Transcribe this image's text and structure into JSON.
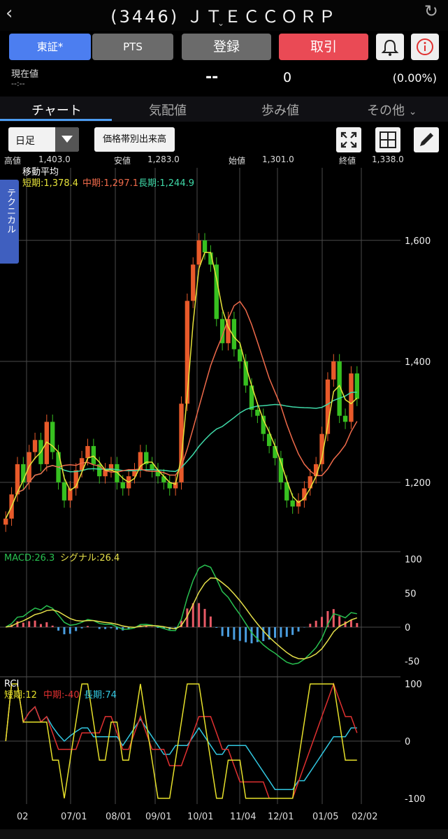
{
  "header": {
    "title": "(3446) ＪＴＥＣＣＯＲＰ",
    "back_icon": "chevron-left-icon",
    "refresh_icon": "refresh-icon"
  },
  "buttons": {
    "market": "東証*",
    "pts": "PTS",
    "register": "登録",
    "trade": "取引"
  },
  "price": {
    "label": "現在値",
    "time": "--:--",
    "value": "--",
    "change": "0",
    "change_pct": "(0.00%)"
  },
  "tabs": [
    {
      "label": "チャート"
    },
    {
      "label": "気配値"
    },
    {
      "label": "歩み値"
    },
    {
      "label": "その他"
    }
  ],
  "toolbar": {
    "period": "日足",
    "volume_button": "価格帯別出来高"
  },
  "ohlc": {
    "high_label": "高値",
    "high": "1,403.0",
    "low_label": "安値",
    "low": "1,283.0",
    "open_label": "始値",
    "open": "1,301.0",
    "close_label": "終値",
    "close": "1,338.0"
  },
  "side_tab": "テクニカル",
  "ma_panel": {
    "title": "移動平均",
    "short": "短期:1,378.4",
    "mid": "中期:1,297.1",
    "long": "長期:1,244.9"
  },
  "macd_panel": {
    "macd": "MACD:26.3",
    "signal": "シグナル:26.4"
  },
  "rci_panel": {
    "title": "RCI",
    "short": "短期:12",
    "mid": "中期:-40",
    "long": "長期:74"
  },
  "x_labels": [
    "02",
    "07/01",
    "08/01",
    "09/01",
    "10/01",
    "11/04",
    "12/01",
    "01/05",
    "02/02"
  ],
  "colors": {
    "up": "#e85a2a",
    "down": "#37c020",
    "short_ma": "#e7e33a",
    "mid_ma": "#ef6a4a",
    "long_ma": "#3fd9a8",
    "macd": "#28c050",
    "signal": "#e6e04a",
    "rci_short": "#e6e02a",
    "rci_mid": "#e03030",
    "rci_long": "#32c7e0"
  },
  "chart_data": [
    {
      "type": "candlestick",
      "title": "移動平均",
      "y_ticks": [
        1200,
        1400,
        1600
      ],
      "ylim": [
        1090,
        1720
      ],
      "x": [
        "02",
        "07/01",
        "08/01",
        "09/01",
        "10/01",
        "11/04",
        "12/01",
        "01/05",
        "02/02"
      ],
      "close_series": [
        1140,
        1180,
        1230,
        1200,
        1250,
        1270,
        1230,
        1300,
        1250,
        1200,
        1170,
        1190,
        1220,
        1240,
        1260,
        1230,
        1210,
        1220,
        1230,
        1200,
        1190,
        1210,
        1220,
        1250,
        1230,
        1220,
        1210,
        1200,
        1190,
        1200,
        1330,
        1500,
        1560,
        1600,
        1580,
        1560,
        1470,
        1430,
        1470,
        1420,
        1400,
        1360,
        1320,
        1310,
        1280,
        1260,
        1240,
        1200,
        1170,
        1160,
        1170,
        1190,
        1210,
        1230,
        1280,
        1370,
        1400,
        1310,
        1300,
        1380,
        1338
      ],
      "series": [
        {
          "name": "短期",
          "last": 1378.4
        },
        {
          "name": "中期",
          "last": 1297.1
        },
        {
          "name": "長期",
          "last": 1244.9
        }
      ]
    },
    {
      "type": "line",
      "title": "MACD",
      "y_ticks": [
        100,
        50,
        0,
        -50
      ],
      "ylim": [
        -70,
        110
      ],
      "series": [
        {
          "name": "MACD",
          "last": 26.3
        },
        {
          "name": "シグナル",
          "last": 26.4
        }
      ]
    },
    {
      "type": "line",
      "title": "RCI",
      "y_ticks": [
        100,
        0,
        -100
      ],
      "ylim": [
        -110,
        110
      ],
      "series": [
        {
          "name": "短期",
          "last": 12
        },
        {
          "name": "中期",
          "last": -40
        },
        {
          "name": "長期",
          "last": 74
        }
      ]
    }
  ]
}
